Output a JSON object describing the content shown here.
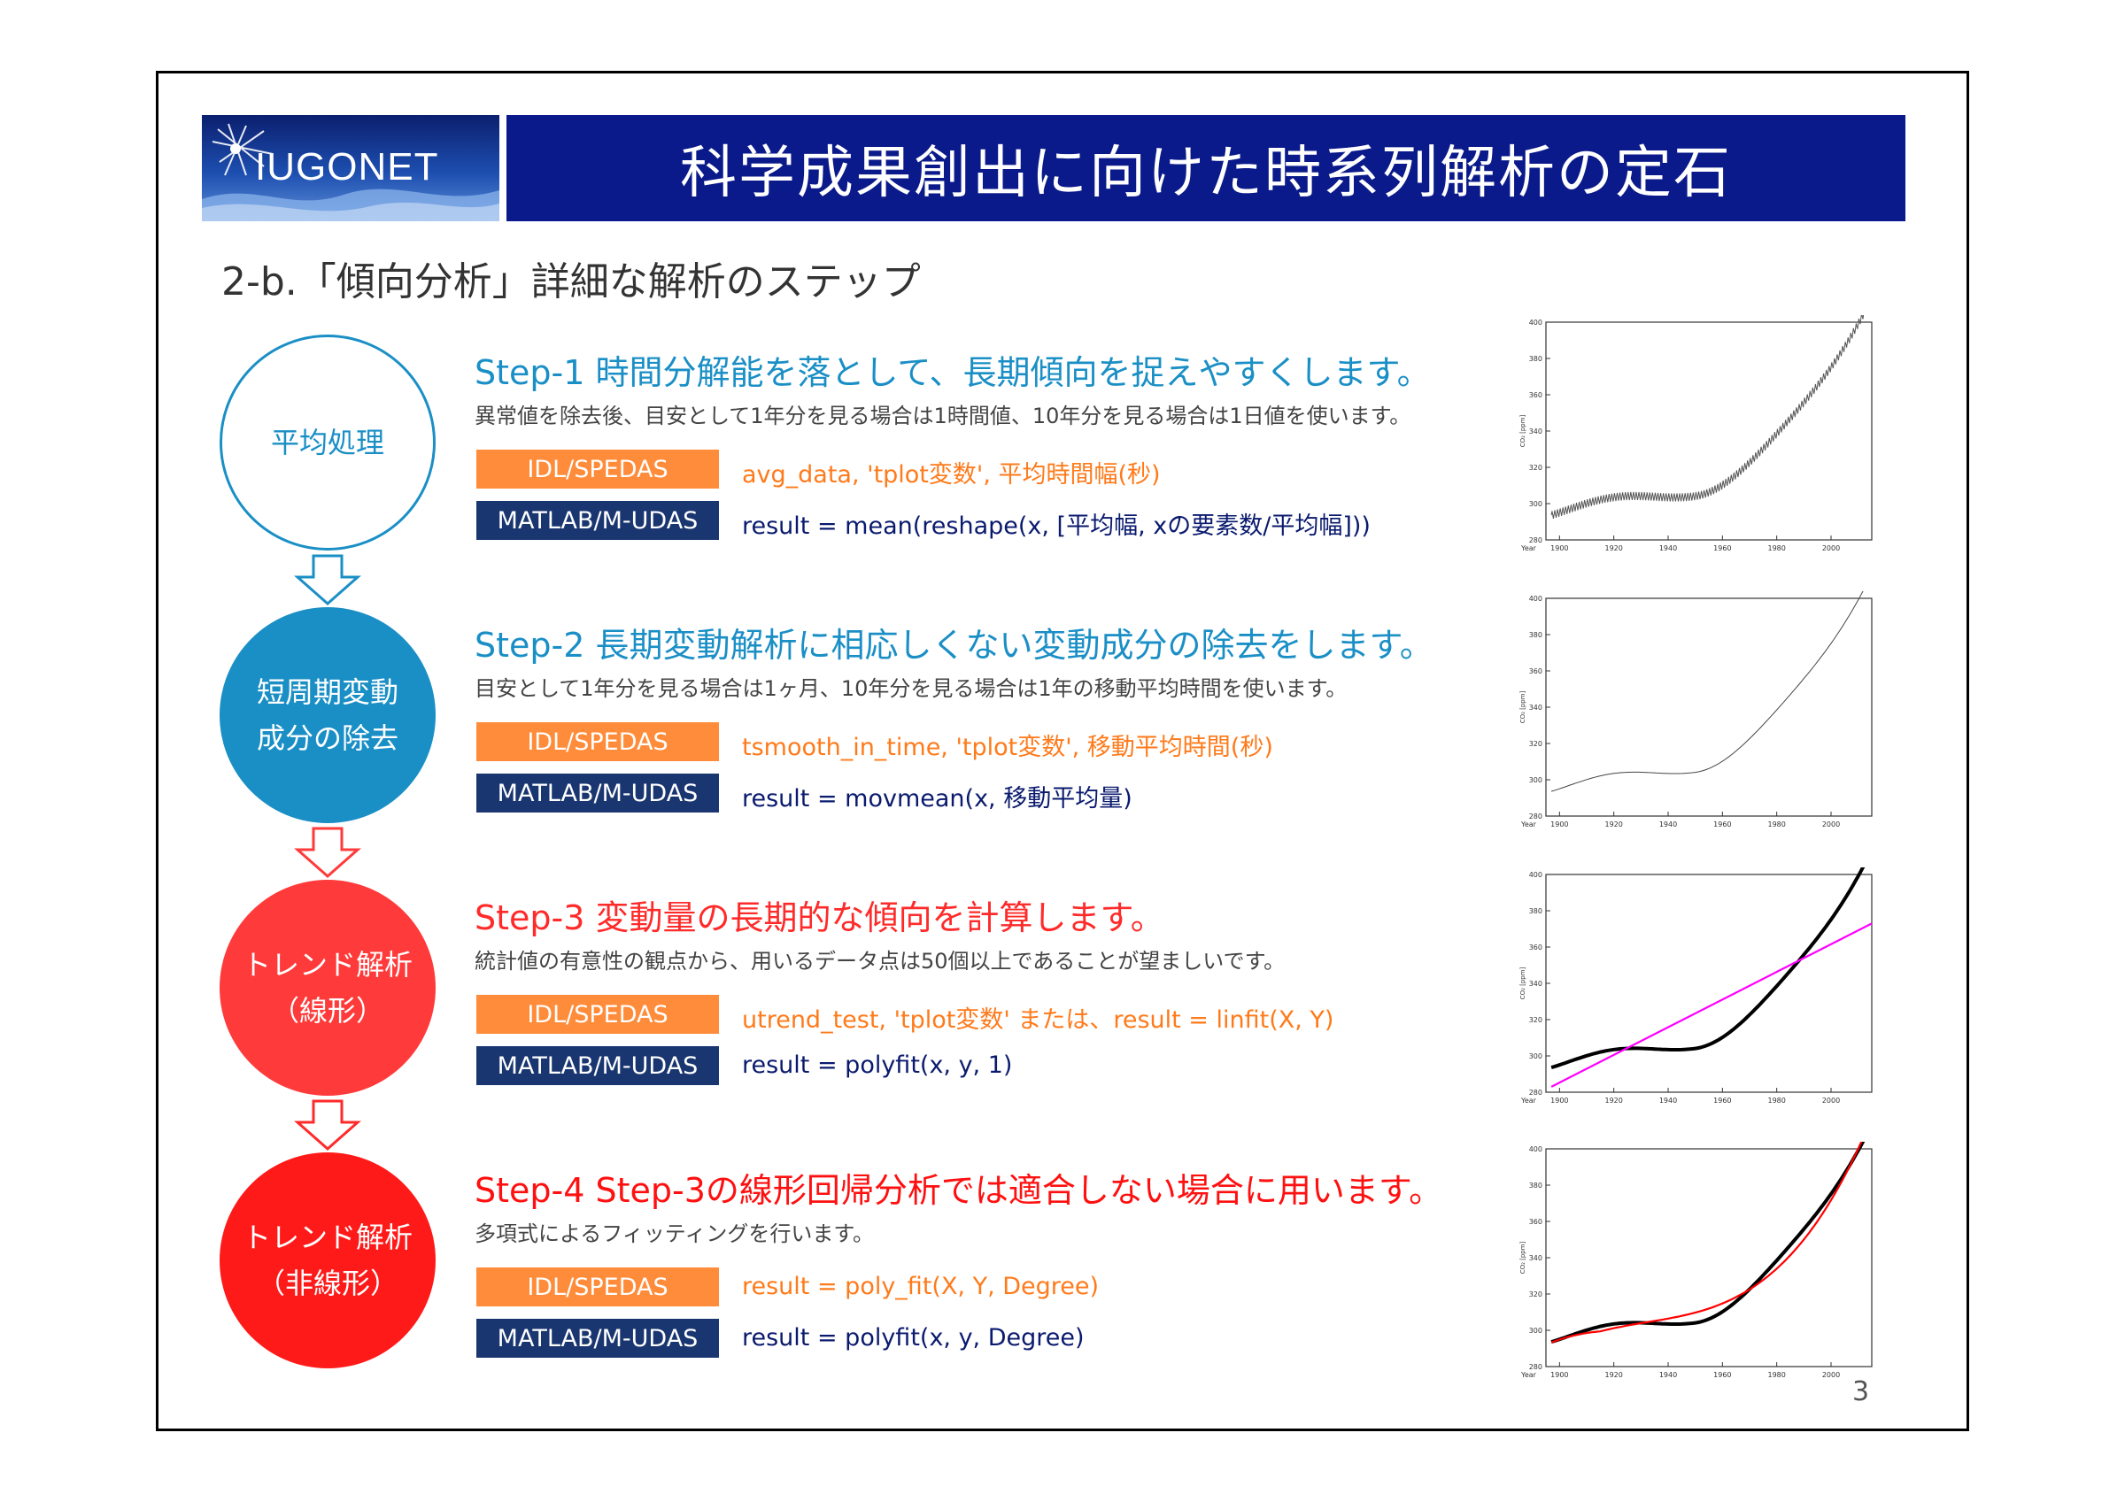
{
  "header": {
    "logo_text": "IUGONET",
    "title": "科学成果創出に向けた時系列解析の定石"
  },
  "subtitle": "2-b.「傾向分析」詳細な解析のステップ",
  "steps": [
    {
      "circle_line1": "平均処理",
      "circle_line2": "",
      "title": "Step-1  時間分解能を落として、長期傾向を捉えやすくします。",
      "desc": "異常値を除去後、目安として1年分を見る場合は1時間値、10年分を見る場合は1日値を使います。",
      "idl_tag": "IDL/SPEDAS",
      "idl_code": "avg_data,  'tplot変数',  平均時間幅(秒)",
      "mat_tag": "MATLAB/M-UDAS",
      "mat_code": "result = mean(reshape(x, [平均幅, xの要素数/平均幅]))"
    },
    {
      "circle_line1": "短周期変動",
      "circle_line2": "成分の除去",
      "title": "Step-2  長期変動解析に相応しくない変動成分の除去をします。",
      "desc": "目安として1年分を見る場合は1ヶ月、10年分を見る場合は1年の移動平均時間を使います。",
      "idl_tag": "IDL/SPEDAS",
      "idl_code": "tsmooth_in_time,  'tplot変数',  移動平均時間(秒)",
      "mat_tag": "MATLAB/M-UDAS",
      "mat_code": "result = movmean(x, 移動平均量)"
    },
    {
      "circle_line1": "トレンド解析",
      "circle_line2": "（線形）",
      "title": "Step-3  変動量の長期的な傾向を計算します。",
      "desc": "統計値の有意性の観点から、用いるデータ点は50個以上であることが望ましいです。",
      "idl_tag": "IDL/SPEDAS",
      "idl_code": "utrend_test,  'tplot変数'  または、result = linfit(X, Y)",
      "mat_tag": "MATLAB/M-UDAS",
      "mat_code": "result = polyfit(x, y, 1)"
    },
    {
      "circle_line1": "トレンド解析",
      "circle_line2": "（非線形）",
      "title": "Step-4  Step-3の線形回帰分析では適合しない場合に用います。",
      "desc": "多項式によるフィッティングを行います。",
      "idl_tag": "IDL/SPEDAS",
      "idl_code": "result = poly_fit(X, Y, Degree)",
      "mat_tag": "MATLAB/M-UDAS",
      "mat_code": "result = polyfit(x, y, Degree)"
    }
  ],
  "colors": {
    "step1": "#1a8fc6",
    "step2": "#1a8fc6",
    "step3": "#ff2a2a",
    "step4": "#ff1010",
    "idl_tag": "#ff8c3a",
    "mat_tag": "#1a3670"
  },
  "plot_axis": {
    "x_ticks": [
      "1900",
      "1920",
      "1940",
      "1960",
      "1980",
      "2000"
    ],
    "y_ticks": [
      "400",
      "380",
      "360",
      "340",
      "320",
      "300",
      "280"
    ],
    "x_label": "Year",
    "y_label": "CO₂ [ppm]"
  },
  "page_number": "3"
}
